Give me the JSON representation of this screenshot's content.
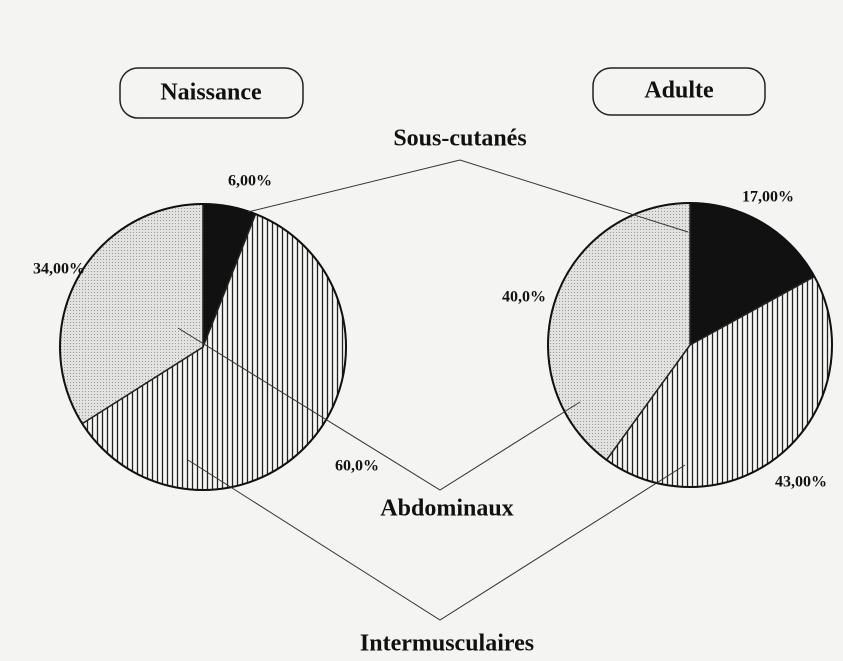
{
  "categories": [
    "Sous-cutanés",
    "Intermusculaires",
    "Abdominaux"
  ],
  "fills": [
    "solid",
    "hatch",
    "dots"
  ],
  "chart_data": [
    {
      "type": "pie",
      "title": "Naissance",
      "values": [
        6,
        60,
        34
      ],
      "value_labels": [
        "6,00%",
        "60,0%",
        "34,00%"
      ]
    },
    {
      "type": "pie",
      "title": "Adulte",
      "values": [
        17,
        43,
        40
      ],
      "value_labels": [
        "17,00%",
        "43,00%",
        "40,0%"
      ]
    }
  ]
}
